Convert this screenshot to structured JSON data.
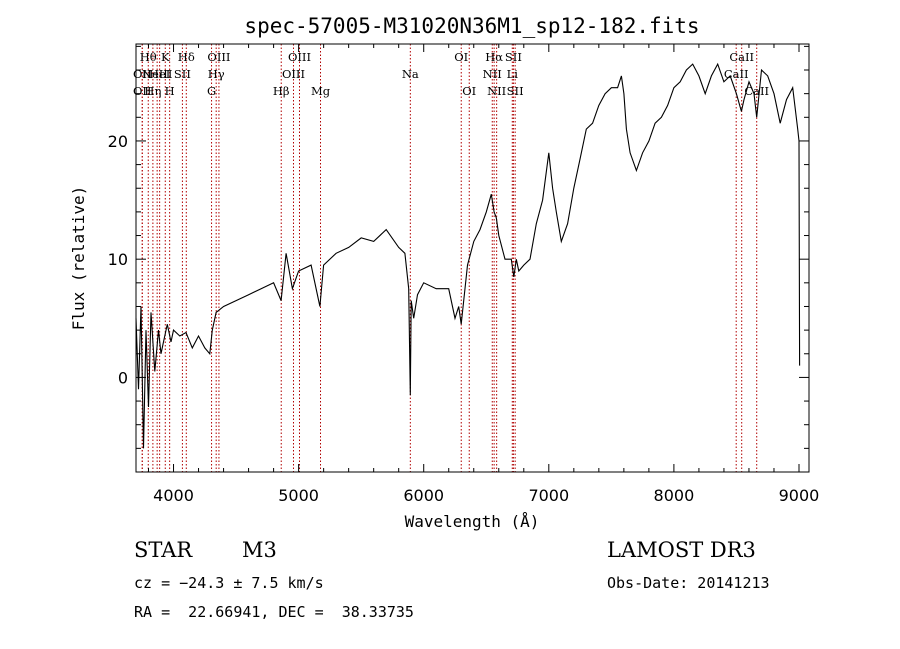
{
  "chart_data": {
    "type": "line",
    "title": "spec-57005-M31020N36M1_sp12-182.fits",
    "xlabel": "Wavelength (Å)",
    "ylabel": "Flux (relative)",
    "xlim": [
      3700,
      9080
    ],
    "ylim": [
      -8.0,
      28.2
    ],
    "xticks": [
      4000,
      5000,
      6000,
      7000,
      8000,
      9000
    ],
    "yticks": [
      0,
      10,
      20
    ],
    "x": [
      3700,
      3720,
      3740,
      3760,
      3780,
      3800,
      3820,
      3850,
      3880,
      3900,
      3920,
      3950,
      3980,
      4000,
      4050,
      4100,
      4150,
      4200,
      4250,
      4290,
      4310,
      4340,
      4400,
      4500,
      4600,
      4700,
      4800,
      4860,
      4900,
      4950,
      5000,
      5100,
      5170,
      5200,
      5300,
      5400,
      5500,
      5600,
      5700,
      5800,
      5850,
      5880,
      5893,
      5900,
      5920,
      5950,
      6000,
      6100,
      6200,
      6250,
      6280,
      6300,
      6350,
      6400,
      6450,
      6500,
      6540,
      6563,
      6580,
      6600,
      6650,
      6700,
      6720,
      6740,
      6760,
      6800,
      6850,
      6900,
      6950,
      7000,
      7030,
      7060,
      7100,
      7150,
      7200,
      7250,
      7300,
      7350,
      7400,
      7450,
      7500,
      7550,
      7580,
      7600,
      7620,
      7650,
      7700,
      7750,
      7800,
      7850,
      7900,
      7950,
      8000,
      8050,
      8100,
      8150,
      8200,
      8250,
      8300,
      8350,
      8400,
      8450,
      8500,
      8540,
      8560,
      8600,
      8640,
      8662,
      8700,
      8750,
      8800,
      8850,
      8900,
      8950,
      8990,
      9000,
      9005
    ],
    "series": [
      {
        "name": "flux",
        "values": [
          5.0,
          -1.0,
          6.0,
          -6.0,
          4.0,
          -2.5,
          5.5,
          0.5,
          4.0,
          2.0,
          3.0,
          4.5,
          3.0,
          4.0,
          3.5,
          3.8,
          2.5,
          3.5,
          2.5,
          2.0,
          4.0,
          5.5,
          6.0,
          6.5,
          7.0,
          7.5,
          8.0,
          6.5,
          10.5,
          7.5,
          9.0,
          9.5,
          6.0,
          9.5,
          10.5,
          11.0,
          11.8,
          11.5,
          12.5,
          11.0,
          10.5,
          7.5,
          -1.5,
          6.5,
          5.0,
          7.0,
          8.0,
          7.5,
          7.5,
          5.0,
          6.0,
          4.5,
          9.5,
          11.5,
          12.5,
          14.0,
          15.5,
          14.0,
          13.5,
          12.0,
          10.0,
          10.0,
          8.5,
          10.0,
          9.0,
          9.5,
          10.0,
          13.0,
          15.0,
          19.0,
          16.0,
          14.0,
          11.5,
          13.0,
          16.0,
          18.5,
          21.0,
          21.5,
          23.0,
          24.0,
          24.5,
          24.5,
          25.5,
          24.0,
          21.0,
          19.0,
          17.5,
          19.0,
          20.0,
          21.5,
          22.0,
          23.0,
          24.5,
          25.0,
          26.0,
          26.5,
          25.5,
          24.0,
          25.5,
          26.5,
          25.0,
          25.5,
          24.0,
          22.5,
          23.5,
          25.0,
          24.0,
          22.0,
          26.0,
          25.5,
          24.0,
          21.5,
          23.5,
          24.5,
          21.0,
          20.0,
          1.0
        ]
      }
    ],
    "lines": [
      {
        "wl": 3750,
        "label": "OII",
        "row": 1
      },
      {
        "wl": 3750,
        "label": "OII",
        "row": 2
      },
      {
        "wl": 3798,
        "label": "Hθ",
        "row": 0
      },
      {
        "wl": 3835,
        "label": "Hη",
        "row": 2
      },
      {
        "wl": 3869,
        "label": "NeIII",
        "row": 1
      },
      {
        "wl": 3889,
        "label": "HeI",
        "row": 1
      },
      {
        "wl": 3934,
        "label": "K",
        "row": 0
      },
      {
        "wl": 3969,
        "label": "H",
        "row": 2
      },
      {
        "wl": 4071,
        "label": "SII",
        "row": 1
      },
      {
        "wl": 4102,
        "label": "Hδ",
        "row": 0
      },
      {
        "wl": 4304,
        "label": "G",
        "row": 2
      },
      {
        "wl": 4341,
        "label": "Hγ",
        "row": 1
      },
      {
        "wl": 4363,
        "label": "OIII",
        "row": 0
      },
      {
        "wl": 4861,
        "label": "Hβ",
        "row": 2
      },
      {
        "wl": 4959,
        "label": "OIII",
        "row": 1
      },
      {
        "wl": 5007,
        "label": "OIII",
        "row": 0
      },
      {
        "wl": 5175,
        "label": "Mg",
        "row": 2
      },
      {
        "wl": 5893,
        "label": "Na",
        "row": 1
      },
      {
        "wl": 6300,
        "label": "OI",
        "row": 0
      },
      {
        "wl": 6364,
        "label": "OI",
        "row": 2
      },
      {
        "wl": 6548,
        "label": "NII",
        "row": 1
      },
      {
        "wl": 6563,
        "label": "Hα",
        "row": 0
      },
      {
        "wl": 6583,
        "label": "NII",
        "row": 2
      },
      {
        "wl": 6708,
        "label": "Li",
        "row": 1
      },
      {
        "wl": 6717,
        "label": "SII",
        "row": 0
      },
      {
        "wl": 6731,
        "label": "SII",
        "row": 2
      },
      {
        "wl": 8498,
        "label": "CaII",
        "row": 1
      },
      {
        "wl": 8542,
        "label": "CaII",
        "row": 0
      },
      {
        "wl": 8662,
        "label": "CaII",
        "row": 2
      }
    ]
  },
  "info": {
    "class": "STAR",
    "subclass": "M3",
    "survey": "LAMOST DR3",
    "cz": "cz = −24.3 ± 7.5 km/s",
    "obs_date": "Obs-Date: 20141213",
    "coords": "RA =  22.66941, DEC =  38.33735"
  },
  "colors": {
    "axis": "#000000",
    "spectrum": "#000000",
    "line_marker": "#b00000",
    "background": "#ffffff"
  }
}
